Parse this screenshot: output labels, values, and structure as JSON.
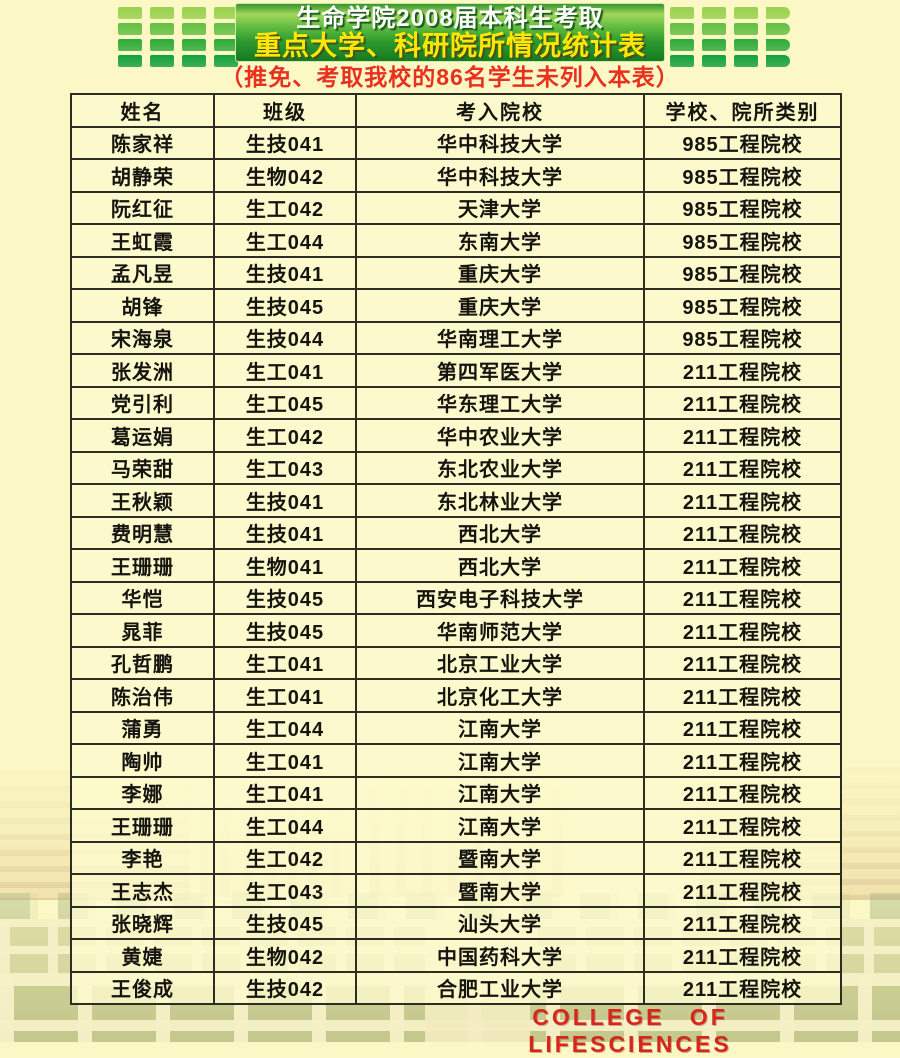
{
  "page": {
    "background_color": "#fbf8c5"
  },
  "header": {
    "title_line1": "生命学院2008届本科生考取",
    "title_line2": "重点大学、科研院所情况统计表",
    "subtitle": "（推免、考取我校的86名学生未列入本表）",
    "banner_green_dark": "#157a23",
    "banner_green_light": "#a2d75b",
    "title_line1_color": "#ffffff",
    "title_line2_color": "#ffe705",
    "subtitle_color": "#e8301f",
    "decor_row_colors": [
      "#98d14e",
      "#63bf41",
      "#2fa93a",
      "#14a03d"
    ]
  },
  "table": {
    "columns": [
      "姓名",
      "班级",
      "考入院校",
      "学校、院所类别"
    ],
    "rows": [
      [
        "陈家祥",
        "生技041",
        "华中科技大学",
        "985工程院校"
      ],
      [
        "胡静荣",
        "生物042",
        "华中科技大学",
        "985工程院校"
      ],
      [
        "阮红征",
        "生工042",
        "天津大学",
        "985工程院校"
      ],
      [
        "王虹霞",
        "生工044",
        "东南大学",
        "985工程院校"
      ],
      [
        "孟凡昱",
        "生技041",
        "重庆大学",
        "985工程院校"
      ],
      [
        "胡锋",
        "生技045",
        "重庆大学",
        "985工程院校"
      ],
      [
        "宋海泉",
        "生技044",
        "华南理工大学",
        "985工程院校"
      ],
      [
        "张发洲",
        "生工041",
        "第四军医大学",
        "211工程院校"
      ],
      [
        "党引利",
        "生工045",
        "华东理工大学",
        "211工程院校"
      ],
      [
        "葛运娟",
        "生工042",
        "华中农业大学",
        "211工程院校"
      ],
      [
        "马荣甜",
        "生工043",
        "东北农业大学",
        "211工程院校"
      ],
      [
        "王秋颖",
        "生技041",
        "东北林业大学",
        "211工程院校"
      ],
      [
        "费明慧",
        "生技041",
        "西北大学",
        "211工程院校"
      ],
      [
        "王珊珊",
        "生物041",
        "西北大学",
        "211工程院校"
      ],
      [
        "华恺",
        "生技045",
        "西安电子科技大学",
        "211工程院校"
      ],
      [
        "晁菲",
        "生技045",
        "华南师范大学",
        "211工程院校"
      ],
      [
        "孔哲鹏",
        "生工041",
        "北京工业大学",
        "211工程院校"
      ],
      [
        "陈治伟",
        "生工041",
        "北京化工大学",
        "211工程院校"
      ],
      [
        "蒲勇",
        "生工044",
        "江南大学",
        "211工程院校"
      ],
      [
        "陶帅",
        "生工041",
        "江南大学",
        "211工程院校"
      ],
      [
        "李娜",
        "生工041",
        "江南大学",
        "211工程院校"
      ],
      [
        "王珊珊",
        "生工044",
        "江南大学",
        "211工程院校"
      ],
      [
        "李艳",
        "生工042",
        "暨南大学",
        "211工程院校"
      ],
      [
        "王志杰",
        "生工043",
        "暨南大学",
        "211工程院校"
      ],
      [
        "张晓辉",
        "生技045",
        "汕头大学",
        "211工程院校"
      ],
      [
        "黄婕",
        "生物042",
        "中国药科大学",
        "211工程院校"
      ],
      [
        "王俊成",
        "生技042",
        "合肥工业大学",
        "211工程院校"
      ]
    ]
  },
  "footer": {
    "text": "COLLEGE OF LIFESCIENCES",
    "color": "#d7271d"
  }
}
